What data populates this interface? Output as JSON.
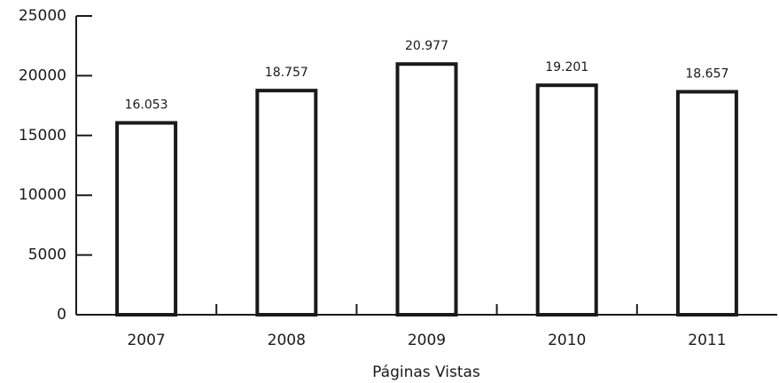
{
  "chart_data": {
    "type": "bar",
    "xlabel": "Páginas Vistas",
    "categories": [
      "2007",
      "2008",
      "2009",
      "2010",
      "2011"
    ],
    "values": [
      16053,
      18757,
      20977,
      19201,
      18657
    ],
    "value_labels": [
      "16.053",
      "18.757",
      "20.977",
      "19.201",
      "18.657"
    ],
    "color": "#1a1a1a",
    "ylim": [
      0,
      25000
    ],
    "yticks": [
      0,
      5000,
      10000,
      15000,
      20000,
      25000
    ],
    "grid": false
  }
}
